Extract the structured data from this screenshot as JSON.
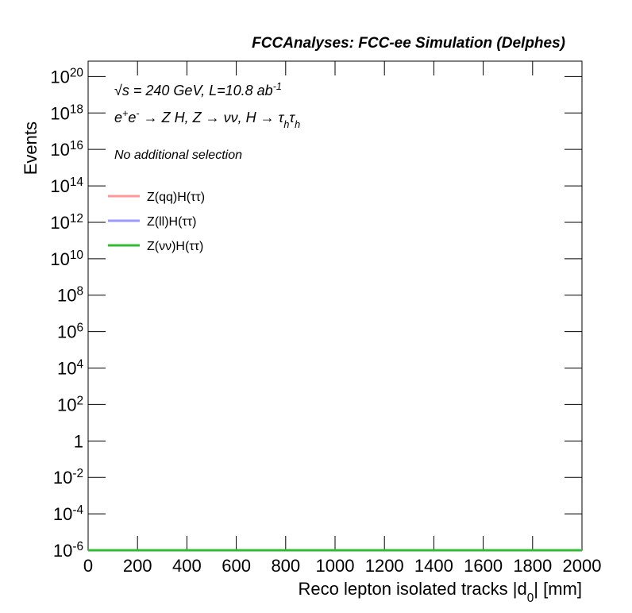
{
  "chart_data": {
    "type": "line",
    "title": "FCCAnalyses: FCC-ee Simulation (Delphes)",
    "annotations": [
      "√s = 240 GeV, L=10.8 ab^{-1}",
      "e^{+}e^{-} → Z H, Z → νν, H → τ_{h}τ_{h}",
      "No additional selection"
    ],
    "xlabel": "Reco lepton isolated tracks |d_{0}| [mm]",
    "ylabel": "Events",
    "log_y": true,
    "xlim": [
      0,
      2000
    ],
    "xticks": [
      0,
      200,
      400,
      600,
      800,
      1000,
      1200,
      1400,
      1600,
      1800,
      2000
    ],
    "ylim": [
      1e-06,
      7e+20
    ],
    "yticks": [
      {
        "value": 1e-06,
        "label": "10^{-6}"
      },
      {
        "value": 0.0001,
        "label": "10^{-4}"
      },
      {
        "value": 0.01,
        "label": "10^{-2}"
      },
      1,
      {
        "value": 100.0,
        "label": "10^{2}"
      },
      {
        "value": 10000.0,
        "label": "10^{4}"
      },
      {
        "value": 1000000.0,
        "label": "10^{6}"
      },
      {
        "value": 100000000.0,
        "label": "10^{8}"
      },
      {
        "value": 10000000000.0,
        "label": "10^{10}"
      },
      {
        "value": 1000000000000.0,
        "label": "10^{12}"
      },
      {
        "value": 100000000000000.0,
        "label": "10^{14}"
      },
      {
        "value": 1e+16,
        "label": "10^{16}"
      },
      {
        "value": 1e+18,
        "label": "10^{18}"
      },
      {
        "value": 1e+20,
        "label": "10^{20}"
      }
    ],
    "x": [
      0,
      2000
    ],
    "series": [
      {
        "name": "Z(qq)H(ττ)",
        "color": "#ff9999",
        "values": [
          1e-06,
          1e-06
        ]
      },
      {
        "name": "Z(ll)H(ττ)",
        "color": "#9999ff",
        "values": [
          1e-06,
          1e-06
        ]
      },
      {
        "name": "Z(νν)H(ττ)",
        "color": "#33bb33",
        "values": [
          1e-06,
          1e-06
        ]
      }
    ]
  }
}
